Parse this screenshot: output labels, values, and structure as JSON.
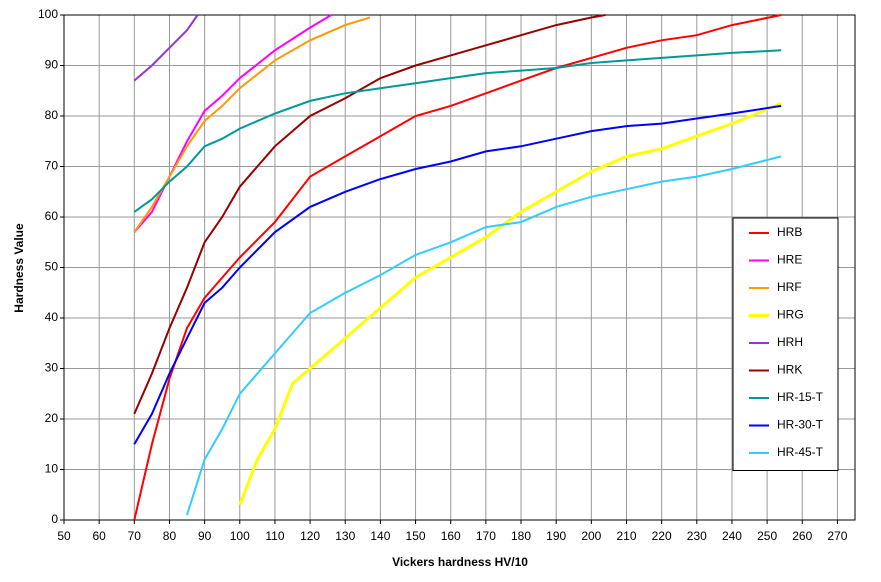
{
  "chart_data": {
    "type": "line",
    "x_label": "Vickers hardness HV/10",
    "y_label": "Hardness Value",
    "xlim": [
      50,
      275
    ],
    "ylim": [
      0,
      100
    ],
    "xticks": [
      50,
      60,
      70,
      80,
      90,
      100,
      110,
      120,
      130,
      140,
      150,
      160,
      170,
      180,
      190,
      200,
      210,
      220,
      230,
      240,
      250,
      260,
      270
    ],
    "yticks": [
      0,
      10,
      20,
      30,
      40,
      50,
      60,
      70,
      80,
      90,
      100
    ],
    "grid": true,
    "legend": "right",
    "series": [
      {
        "name": "HRB",
        "color": "#ff0000",
        "x": [
          70,
          75,
          80,
          85,
          90,
          95,
          100,
          110,
          120,
          130,
          140,
          150,
          160,
          170,
          180,
          190,
          200,
          210,
          220,
          230,
          240,
          254
        ],
        "values": [
          0,
          15,
          28,
          38,
          44,
          48,
          52,
          59,
          68,
          72,
          76,
          80,
          82,
          84.5,
          87,
          89.5,
          91.5,
          93.5,
          95,
          96,
          98,
          100
        ]
      },
      {
        "name": "HRE",
        "color": "#ff00ff",
        "x": [
          70,
          75,
          80,
          85,
          90,
          95,
          100,
          110,
          120,
          126
        ],
        "values": [
          57,
          61,
          68,
          75,
          81,
          84,
          87.5,
          93,
          97.5,
          100
        ]
      },
      {
        "name": "HRF",
        "color": "#ff9900",
        "x": [
          70,
          75,
          80,
          85,
          90,
          95,
          100,
          110,
          120,
          130,
          137
        ],
        "values": [
          57,
          62,
          68,
          74,
          79,
          82,
          85.5,
          91,
          95,
          98,
          99.5
        ]
      },
      {
        "name": "HRG",
        "color": "#ffff00",
        "x": [
          100,
          105,
          110,
          115,
          120,
          130,
          140,
          150,
          160,
          170,
          180,
          190,
          200,
          210,
          220,
          230,
          240,
          254
        ],
        "values": [
          3,
          12,
          18,
          27,
          30,
          36,
          42,
          48,
          52,
          56,
          61,
          65,
          69,
          72,
          73.5,
          76,
          78.5,
          82.5
        ]
      },
      {
        "name": "HRH",
        "color": "#9933cc",
        "x": [
          70,
          75,
          80,
          85,
          88
        ],
        "values": [
          87,
          90,
          93.5,
          97,
          100
        ]
      },
      {
        "name": "HRK",
        "color": "#990000",
        "x": [
          70,
          75,
          80,
          85,
          90,
          95,
          100,
          110,
          120,
          130,
          140,
          150,
          160,
          170,
          180,
          190,
          200,
          204
        ],
        "values": [
          21,
          29,
          38,
          46,
          55,
          60,
          66,
          74,
          80,
          83.5,
          87.5,
          90,
          92,
          94,
          96,
          98,
          99.5,
          100
        ]
      },
      {
        "name": "HR-15-T",
        "color": "#009999",
        "x": [
          70,
          75,
          80,
          85,
          90,
          95,
          100,
          110,
          120,
          130,
          140,
          150,
          160,
          170,
          180,
          190,
          200,
          210,
          220,
          230,
          240,
          254
        ],
        "values": [
          61,
          63.5,
          67,
          70,
          74,
          75.5,
          77.5,
          80.5,
          83,
          84.5,
          85.5,
          86.5,
          87.5,
          88.5,
          89,
          89.5,
          90.5,
          91,
          91.5,
          92,
          92.5,
          93
        ]
      },
      {
        "name": "HR-30-T",
        "color": "#0000ff",
        "x": [
          70,
          75,
          80,
          85,
          90,
          95,
          100,
          110,
          120,
          130,
          140,
          150,
          160,
          170,
          180,
          190,
          200,
          210,
          220,
          230,
          240,
          254
        ],
        "values": [
          15,
          21,
          29,
          36,
          43,
          46,
          50,
          57,
          62,
          65,
          67.5,
          69.5,
          71,
          73,
          74,
          75.5,
          77,
          78,
          78.5,
          79.5,
          80.5,
          82
        ]
      },
      {
        "name": "HR-45-T",
        "color": "#33ccff",
        "x": [
          85,
          90,
          95,
          100,
          110,
          120,
          130,
          140,
          150,
          160,
          170,
          180,
          190,
          200,
          210,
          220,
          230,
          240,
          254
        ],
        "values": [
          1,
          12,
          18,
          25,
          33,
          41,
          45,
          48.5,
          52.5,
          55,
          58,
          59,
          62,
          64,
          65.5,
          67,
          68,
          69.5,
          72
        ]
      }
    ]
  }
}
